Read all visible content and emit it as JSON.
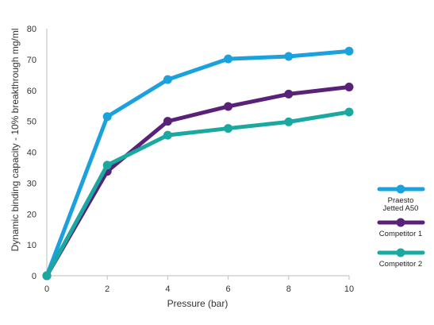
{
  "chart_data": {
    "type": "line",
    "title": "",
    "xlabel": "Pressure (bar)",
    "ylabel": "Dynamic binding capacity - 10% breakthrough mg/ml",
    "x": [
      0,
      2,
      4,
      6,
      8,
      10
    ],
    "xlim": [
      0,
      10
    ],
    "ylim": [
      0,
      80
    ],
    "x_ticks": [
      "0",
      "2",
      "4",
      "6",
      "8",
      "10"
    ],
    "y_ticks": [
      "0",
      "10",
      "20",
      "30",
      "40",
      "50",
      "60",
      "70",
      "80"
    ],
    "grid": false,
    "legend_position": "right",
    "series": [
      {
        "name": "Praesto Jetted A50",
        "name_lines": [
          "Praesto",
          "Jetted A50"
        ],
        "color": "#1ba1dd",
        "values": [
          0,
          51.5,
          63.5,
          70.2,
          71,
          72.7
        ]
      },
      {
        "name": "Competitor 1",
        "name_lines": [
          "Competitor 1"
        ],
        "color": "#5a2178",
        "values": [
          0,
          33.8,
          50,
          54.8,
          58.8,
          61.1
        ]
      },
      {
        "name": "Competitor 2",
        "name_lines": [
          "Competitor 2"
        ],
        "color": "#1aa8a0",
        "values": [
          0,
          35.8,
          45.5,
          47.7,
          49.8,
          53
        ]
      }
    ]
  }
}
